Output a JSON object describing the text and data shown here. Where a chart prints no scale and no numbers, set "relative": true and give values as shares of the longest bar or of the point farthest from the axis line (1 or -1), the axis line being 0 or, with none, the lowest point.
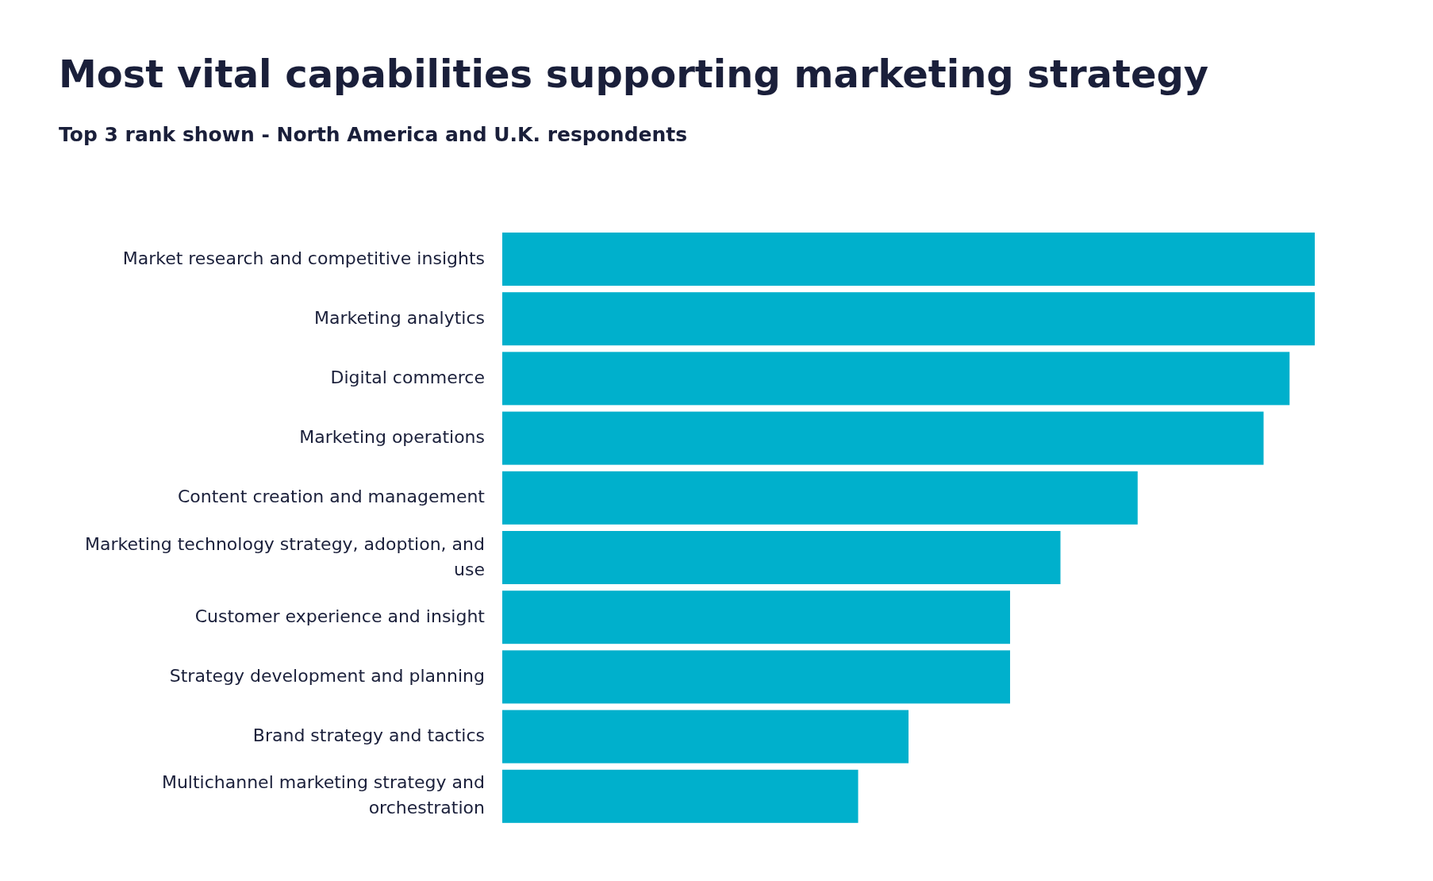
{
  "chart_data": {
    "type": "bar",
    "orientation": "horizontal",
    "relative": true,
    "title": "Most vital capabilities supporting marketing strategy",
    "subtitle": "Top 3 rank shown - North America and U.K. respondents",
    "categories": [
      "Market research and competitive insights",
      "Marketing analytics",
      "Digital commerce",
      "Marketing operations",
      "Content creation and management",
      "Marketing technology strategy, adoption, and use",
      "Customer experience and insight",
      "Strategy development and planning",
      "Brand strategy and tactics",
      "Multichannel marketing strategy and orchestration"
    ],
    "values": [
      1,
      1,
      0.969,
      0.937,
      0.782,
      0.687,
      0.625,
      0.625,
      0.5,
      0.438
    ],
    "color": "#00b0cc"
  }
}
